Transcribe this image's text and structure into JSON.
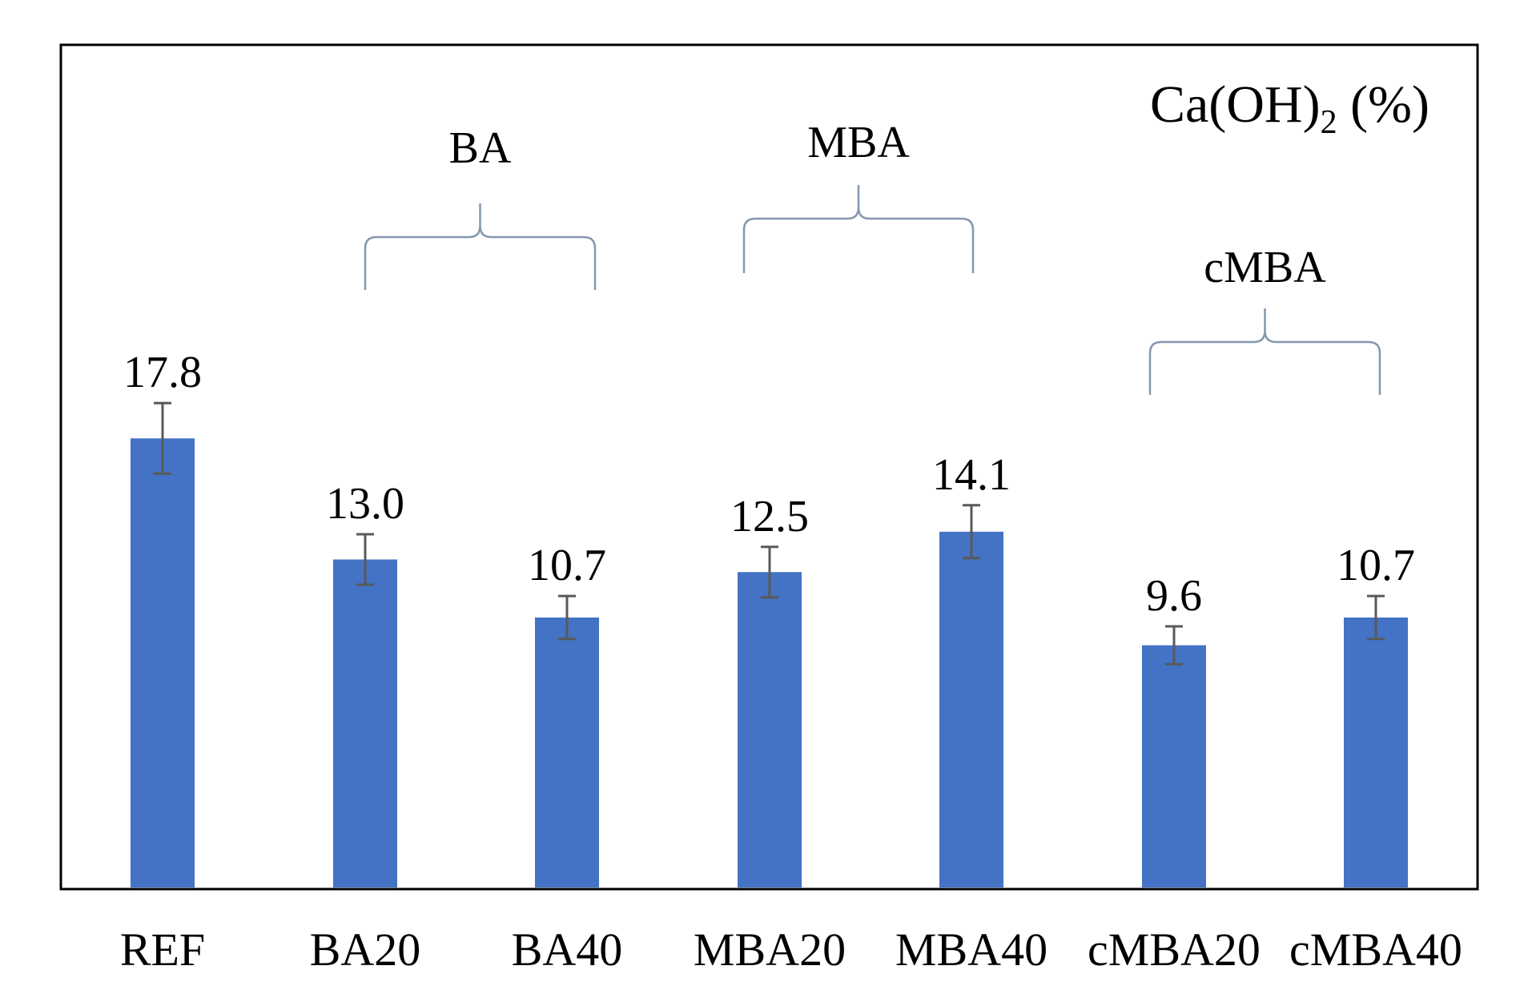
{
  "chart_data": {
    "type": "bar",
    "title": "Ca(OH)",
    "title_subscript": "2",
    "title_suffix": " (%)",
    "title_placement": "top-right",
    "xlabel": "",
    "ylabel": "",
    "ylim": [
      0,
      20
    ],
    "grid": false,
    "categories": [
      "REF",
      "BA20",
      "BA40",
      "MBA20",
      "MBA40",
      "cMBA20",
      "cMBA40"
    ],
    "values": [
      17.8,
      13.0,
      10.7,
      12.5,
      14.1,
      9.6,
      10.7
    ],
    "value_labels": [
      "17.8",
      "13.0",
      "10.7",
      "12.5",
      "14.1",
      "9.6",
      "10.7"
    ],
    "error": [
      1.4,
      1.0,
      0.85,
      1.0,
      1.05,
      0.75,
      0.85
    ],
    "groups": [
      {
        "label": "BA",
        "members": [
          "BA20",
          "BA40"
        ]
      },
      {
        "label": "MBA",
        "members": [
          "MBA20",
          "MBA40"
        ]
      },
      {
        "label": "cMBA",
        "members": [
          "cMBA20",
          "cMBA40"
        ]
      }
    ],
    "colors": {
      "bar": "#4472C4",
      "error_bar": "#595959",
      "bracket": "#8497B0",
      "frame": "#000000"
    }
  }
}
